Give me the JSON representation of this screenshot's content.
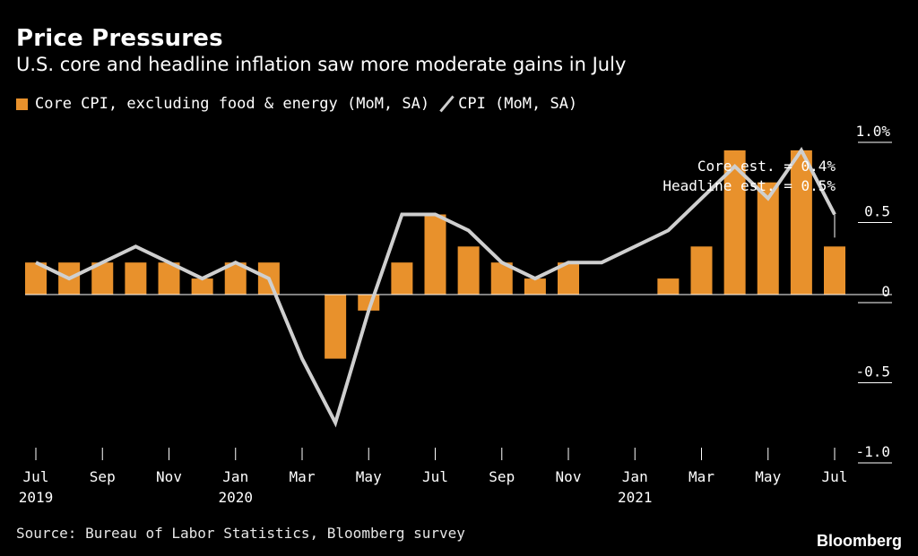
{
  "header": {
    "title": "Price Pressures",
    "subtitle": "U.S. core and headline inflation saw more moderate gains in July"
  },
  "footer": {
    "source": "Source: Bureau of Labor Statistics, Bloomberg survey",
    "brand": "Bloomberg"
  },
  "colors": {
    "core": "#e8912c",
    "headline": "#cfcfcf",
    "background": "#000000",
    "text": "#ffffff"
  },
  "chart_data": {
    "type": "bar",
    "title": "Price Pressures",
    "subtitle": "U.S. core and headline inflation saw more moderate gains in July",
    "legend_position": "top-left",
    "grid": false,
    "x": [
      "2019-07",
      "2019-08",
      "2019-09",
      "2019-10",
      "2019-11",
      "2019-12",
      "2020-01",
      "2020-02",
      "2020-03",
      "2020-04",
      "2020-05",
      "2020-06",
      "2020-07",
      "2020-08",
      "2020-09",
      "2020-10",
      "2020-11",
      "2020-12",
      "2021-01",
      "2021-02",
      "2021-03",
      "2021-04",
      "2021-05",
      "2021-06",
      "2021-07"
    ],
    "x_tick_labels": [
      {
        "month": "Jul",
        "year": "2019"
      },
      {
        "month": "Sep",
        "year": ""
      },
      {
        "month": "Nov",
        "year": ""
      },
      {
        "month": "Jan",
        "year": "2020"
      },
      {
        "month": "Mar",
        "year": ""
      },
      {
        "month": "May",
        "year": ""
      },
      {
        "month": "Jul",
        "year": ""
      },
      {
        "month": "Sep",
        "year": ""
      },
      {
        "month": "Nov",
        "year": ""
      },
      {
        "month": "Jan",
        "year": "2021"
      },
      {
        "month": "Mar",
        "year": ""
      },
      {
        "month": "May",
        "year": ""
      },
      {
        "month": "Jul",
        "year": ""
      }
    ],
    "y_tick_labels": [
      "1.0%",
      "0.5",
      "0",
      "-0.5",
      "-1.0"
    ],
    "y_ticks": [
      1.0,
      0.5,
      0,
      -0.5,
      -1.0
    ],
    "ylim": [
      -1.0,
      1.0
    ],
    "series": [
      {
        "name": "Core CPI, excluding food & energy (MoM, SA)",
        "kind": "bar",
        "values": [
          0.2,
          0.2,
          0.2,
          0.2,
          0.2,
          0.1,
          0.2,
          0.2,
          0.0,
          -0.4,
          -0.1,
          0.2,
          0.5,
          0.3,
          0.2,
          0.1,
          0.2,
          0.0,
          0.0,
          0.1,
          0.3,
          0.9,
          0.7,
          0.9,
          0.3
        ]
      },
      {
        "name": "CPI (MoM, SA)",
        "kind": "line",
        "values": [
          0.2,
          0.1,
          0.2,
          0.3,
          0.2,
          0.1,
          0.2,
          0.1,
          -0.4,
          -0.8,
          -0.1,
          0.5,
          0.5,
          0.4,
          0.2,
          0.1,
          0.2,
          0.2,
          0.3,
          0.4,
          0.6,
          0.8,
          0.6,
          0.9,
          0.5
        ]
      }
    ],
    "annotations": [
      "Core est. = 0.4%",
      "Headline est. = 0.5%"
    ],
    "estimates": {
      "core": 0.4,
      "headline": 0.5
    }
  }
}
